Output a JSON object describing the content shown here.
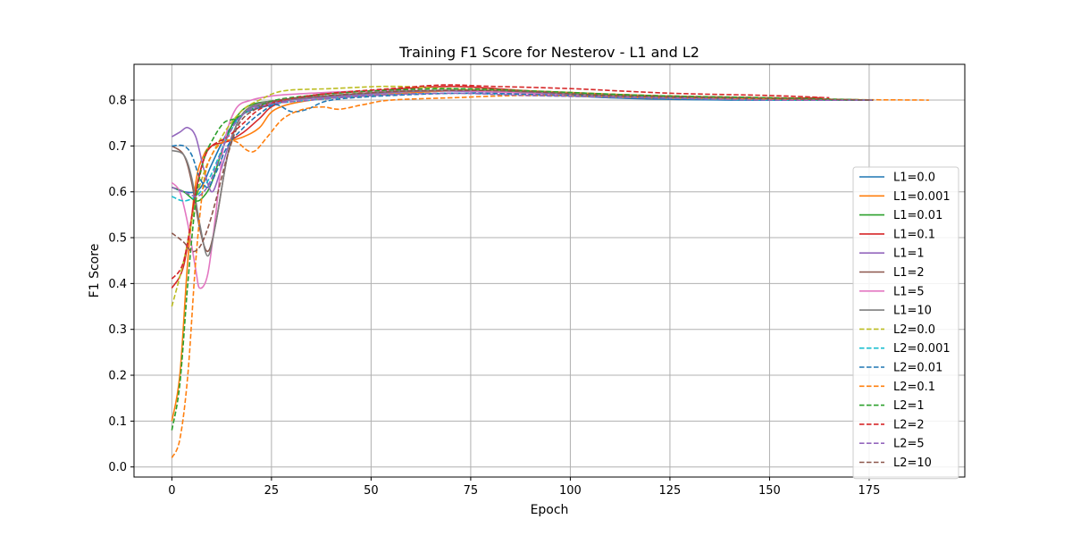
{
  "chart_data": {
    "type": "line",
    "title": "Training F1 Score for Nesterov - L1 and L2",
    "xlabel": "Epoch",
    "ylabel": "F1 Score",
    "xlim": [
      -9.5,
      199
    ],
    "ylim": [
      -0.022,
      0.878
    ],
    "xticks": [
      0,
      25,
      50,
      75,
      100,
      125,
      150,
      175
    ],
    "yticks": [
      0.0,
      0.1,
      0.2,
      0.3,
      0.4,
      0.5,
      0.6,
      0.7,
      0.8
    ],
    "grid": true,
    "legend_position": "right",
    "series": [
      {
        "name": "L1=0.0",
        "color": "#1f77b4",
        "dash": "solid",
        "points": [
          [
            0,
            0.61
          ],
          [
            3,
            0.6
          ],
          [
            6,
            0.6
          ],
          [
            8,
            0.62
          ],
          [
            10,
            0.66
          ],
          [
            14,
            0.73
          ],
          [
            18,
            0.77
          ],
          [
            25,
            0.79
          ],
          [
            35,
            0.81
          ],
          [
            50,
            0.82
          ],
          [
            70,
            0.82
          ],
          [
            90,
            0.815
          ],
          [
            110,
            0.805
          ],
          [
            140,
            0.8
          ],
          [
            176,
            0.8
          ]
        ]
      },
      {
        "name": "L1=0.001",
        "color": "#ff7f0e",
        "dash": "solid",
        "points": [
          [
            0,
            0.1
          ],
          [
            2,
            0.2
          ],
          [
            4,
            0.45
          ],
          [
            6,
            0.62
          ],
          [
            8,
            0.68
          ],
          [
            10,
            0.7
          ],
          [
            14,
            0.71
          ],
          [
            18,
            0.72
          ],
          [
            22,
            0.74
          ],
          [
            26,
            0.78
          ],
          [
            35,
            0.8
          ],
          [
            50,
            0.81
          ],
          [
            70,
            0.82
          ],
          [
            90,
            0.815
          ],
          [
            110,
            0.808
          ],
          [
            140,
            0.803
          ],
          [
            176,
            0.8
          ]
        ]
      },
      {
        "name": "L1=0.01",
        "color": "#2ca02c",
        "dash": "solid",
        "points": [
          [
            0,
            0.61
          ],
          [
            3,
            0.6
          ],
          [
            6,
            0.58
          ],
          [
            8,
            0.59
          ],
          [
            10,
            0.62
          ],
          [
            13,
            0.7
          ],
          [
            16,
            0.76
          ],
          [
            20,
            0.79
          ],
          [
            28,
            0.8
          ],
          [
            40,
            0.81
          ],
          [
            60,
            0.82
          ],
          [
            80,
            0.82
          ],
          [
            100,
            0.81
          ],
          [
            130,
            0.805
          ],
          [
            160,
            0.8
          ],
          [
            176,
            0.8
          ]
        ]
      },
      {
        "name": "L1=0.1",
        "color": "#d62728",
        "dash": "solid",
        "points": [
          [
            0,
            0.39
          ],
          [
            3,
            0.44
          ],
          [
            6,
            0.6
          ],
          [
            8,
            0.67
          ],
          [
            10,
            0.7
          ],
          [
            14,
            0.71
          ],
          [
            18,
            0.73
          ],
          [
            22,
            0.76
          ],
          [
            26,
            0.79
          ],
          [
            35,
            0.81
          ],
          [
            50,
            0.82
          ],
          [
            70,
            0.83
          ],
          [
            90,
            0.82
          ],
          [
            120,
            0.81
          ],
          [
            150,
            0.805
          ],
          [
            163,
            0.805
          ]
        ]
      },
      {
        "name": "L1=1",
        "color": "#9467bd",
        "dash": "solid",
        "points": [
          [
            0,
            0.72
          ],
          [
            2,
            0.73
          ],
          [
            4,
            0.74
          ],
          [
            6,
            0.72
          ],
          [
            8,
            0.65
          ],
          [
            10,
            0.6
          ],
          [
            12,
            0.64
          ],
          [
            15,
            0.72
          ],
          [
            18,
            0.77
          ],
          [
            22,
            0.79
          ],
          [
            30,
            0.8
          ],
          [
            45,
            0.81
          ],
          [
            65,
            0.82
          ],
          [
            90,
            0.815
          ],
          [
            120,
            0.808
          ],
          [
            150,
            0.803
          ],
          [
            176,
            0.8
          ]
        ]
      },
      {
        "name": "L1=2",
        "color": "#8c564b",
        "dash": "solid",
        "points": [
          [
            0,
            0.7
          ],
          [
            3,
            0.68
          ],
          [
            5,
            0.62
          ],
          [
            7,
            0.52
          ],
          [
            9,
            0.47
          ],
          [
            11,
            0.53
          ],
          [
            14,
            0.68
          ],
          [
            17,
            0.76
          ],
          [
            21,
            0.79
          ],
          [
            28,
            0.8
          ],
          [
            40,
            0.81
          ],
          [
            60,
            0.82
          ],
          [
            85,
            0.82
          ],
          [
            110,
            0.81
          ],
          [
            140,
            0.805
          ],
          [
            176,
            0.8
          ]
        ]
      },
      {
        "name": "L1=5",
        "color": "#e377c2",
        "dash": "solid",
        "points": [
          [
            0,
            0.62
          ],
          [
            2,
            0.6
          ],
          [
            4,
            0.53
          ],
          [
            6,
            0.43
          ],
          [
            7,
            0.39
          ],
          [
            9,
            0.42
          ],
          [
            11,
            0.55
          ],
          [
            13,
            0.7
          ],
          [
            16,
            0.78
          ],
          [
            20,
            0.8
          ],
          [
            26,
            0.81
          ],
          [
            35,
            0.815
          ],
          [
            50,
            0.82
          ],
          [
            75,
            0.82
          ],
          [
            100,
            0.81
          ],
          [
            130,
            0.805
          ],
          [
            176,
            0.8
          ]
        ]
      },
      {
        "name": "L1=10",
        "color": "#7f7f7f",
        "dash": "solid",
        "points": [
          [
            0,
            0.69
          ],
          [
            3,
            0.68
          ],
          [
            5,
            0.63
          ],
          [
            7,
            0.53
          ],
          [
            9,
            0.46
          ],
          [
            11,
            0.53
          ],
          [
            14,
            0.68
          ],
          [
            17,
            0.76
          ],
          [
            21,
            0.79
          ],
          [
            28,
            0.8
          ],
          [
            40,
            0.81
          ],
          [
            60,
            0.82
          ],
          [
            85,
            0.82
          ],
          [
            110,
            0.81
          ],
          [
            140,
            0.805
          ],
          [
            176,
            0.8
          ]
        ]
      },
      {
        "name": "L2=0.0",
        "color": "#bcbd22",
        "dash": "dashed",
        "points": [
          [
            0,
            0.35
          ],
          [
            3,
            0.45
          ],
          [
            6,
            0.58
          ],
          [
            8,
            0.64
          ],
          [
            10,
            0.68
          ],
          [
            14,
            0.74
          ],
          [
            18,
            0.78
          ],
          [
            22,
            0.8
          ],
          [
            28,
            0.82
          ],
          [
            40,
            0.825
          ],
          [
            55,
            0.83
          ],
          [
            70,
            0.825
          ],
          [
            90,
            0.82
          ],
          [
            120,
            0.81
          ],
          [
            150,
            0.805
          ],
          [
            176,
            0.8
          ]
        ]
      },
      {
        "name": "L2=0.001",
        "color": "#17becf",
        "dash": "dashed",
        "points": [
          [
            0,
            0.59
          ],
          [
            3,
            0.58
          ],
          [
            6,
            0.59
          ],
          [
            8,
            0.61
          ],
          [
            10,
            0.64
          ],
          [
            14,
            0.72
          ],
          [
            18,
            0.77
          ],
          [
            24,
            0.79
          ],
          [
            35,
            0.8
          ],
          [
            50,
            0.81
          ],
          [
            70,
            0.815
          ],
          [
            90,
            0.81
          ],
          [
            120,
            0.805
          ],
          [
            150,
            0.8
          ],
          [
            176,
            0.8
          ]
        ]
      },
      {
        "name": "L2=0.01",
        "color": "#1f77b4",
        "dash": "dashed",
        "points": [
          [
            0,
            0.7
          ],
          [
            3,
            0.7
          ],
          [
            5,
            0.68
          ],
          [
            7,
            0.63
          ],
          [
            9,
            0.61
          ],
          [
            11,
            0.64
          ],
          [
            14,
            0.7
          ],
          [
            18,
            0.74
          ],
          [
            22,
            0.77
          ],
          [
            26,
            0.79
          ],
          [
            30,
            0.775
          ],
          [
            34,
            0.78
          ],
          [
            40,
            0.8
          ],
          [
            55,
            0.81
          ],
          [
            75,
            0.815
          ],
          [
            100,
            0.81
          ],
          [
            130,
            0.805
          ],
          [
            176,
            0.8
          ]
        ]
      },
      {
        "name": "L2=0.1",
        "color": "#ff7f0e",
        "dash": "dashed",
        "points": [
          [
            0,
            0.02
          ],
          [
            2,
            0.06
          ],
          [
            4,
            0.2
          ],
          [
            6,
            0.45
          ],
          [
            8,
            0.62
          ],
          [
            10,
            0.68
          ],
          [
            13,
            0.71
          ],
          [
            16,
            0.71
          ],
          [
            19,
            0.69
          ],
          [
            21,
            0.69
          ],
          [
            24,
            0.72
          ],
          [
            28,
            0.76
          ],
          [
            33,
            0.78
          ],
          [
            38,
            0.785
          ],
          [
            42,
            0.78
          ],
          [
            48,
            0.79
          ],
          [
            55,
            0.8
          ],
          [
            70,
            0.805
          ],
          [
            90,
            0.81
          ],
          [
            120,
            0.805
          ],
          [
            150,
            0.802
          ],
          [
            190,
            0.8
          ]
        ]
      },
      {
        "name": "L2=1",
        "color": "#2ca02c",
        "dash": "dashed",
        "points": [
          [
            0,
            0.08
          ],
          [
            2,
            0.18
          ],
          [
            4,
            0.4
          ],
          [
            6,
            0.58
          ],
          [
            8,
            0.67
          ],
          [
            10,
            0.71
          ],
          [
            13,
            0.75
          ],
          [
            16,
            0.76
          ],
          [
            20,
            0.78
          ],
          [
            26,
            0.8
          ],
          [
            35,
            0.81
          ],
          [
            50,
            0.82
          ],
          [
            70,
            0.825
          ],
          [
            90,
            0.82
          ],
          [
            120,
            0.81
          ],
          [
            150,
            0.805
          ],
          [
            176,
            0.8
          ]
        ]
      },
      {
        "name": "L2=2",
        "color": "#d62728",
        "dash": "dashed",
        "points": [
          [
            0,
            0.41
          ],
          [
            3,
            0.45
          ],
          [
            6,
            0.6
          ],
          [
            8,
            0.67
          ],
          [
            10,
            0.7
          ],
          [
            14,
            0.72
          ],
          [
            18,
            0.75
          ],
          [
            22,
            0.78
          ],
          [
            28,
            0.8
          ],
          [
            40,
            0.815
          ],
          [
            55,
            0.825
          ],
          [
            68,
            0.833
          ],
          [
            80,
            0.83
          ],
          [
            100,
            0.825
          ],
          [
            125,
            0.815
          ],
          [
            150,
            0.81
          ],
          [
            165,
            0.805
          ]
        ]
      },
      {
        "name": "L2=5",
        "color": "#9467bd",
        "dash": "dashed",
        "points": [
          [
            0,
            0.61
          ],
          [
            3,
            0.6
          ],
          [
            6,
            0.59
          ],
          [
            8,
            0.6
          ],
          [
            10,
            0.63
          ],
          [
            14,
            0.72
          ],
          [
            18,
            0.77
          ],
          [
            24,
            0.79
          ],
          [
            35,
            0.8
          ],
          [
            50,
            0.81
          ],
          [
            70,
            0.815
          ],
          [
            90,
            0.81
          ],
          [
            120,
            0.805
          ],
          [
            150,
            0.8
          ],
          [
            176,
            0.8
          ]
        ]
      },
      {
        "name": "L2=10",
        "color": "#8c564b",
        "dash": "dashed",
        "points": [
          [
            0,
            0.51
          ],
          [
            3,
            0.49
          ],
          [
            5,
            0.47
          ],
          [
            7,
            0.48
          ],
          [
            9,
            0.52
          ],
          [
            11,
            0.58
          ],
          [
            14,
            0.68
          ],
          [
            17,
            0.75
          ],
          [
            21,
            0.78
          ],
          [
            27,
            0.8
          ],
          [
            40,
            0.81
          ],
          [
            60,
            0.82
          ],
          [
            85,
            0.82
          ],
          [
            110,
            0.81
          ],
          [
            140,
            0.805
          ],
          [
            176,
            0.8
          ]
        ]
      }
    ]
  }
}
